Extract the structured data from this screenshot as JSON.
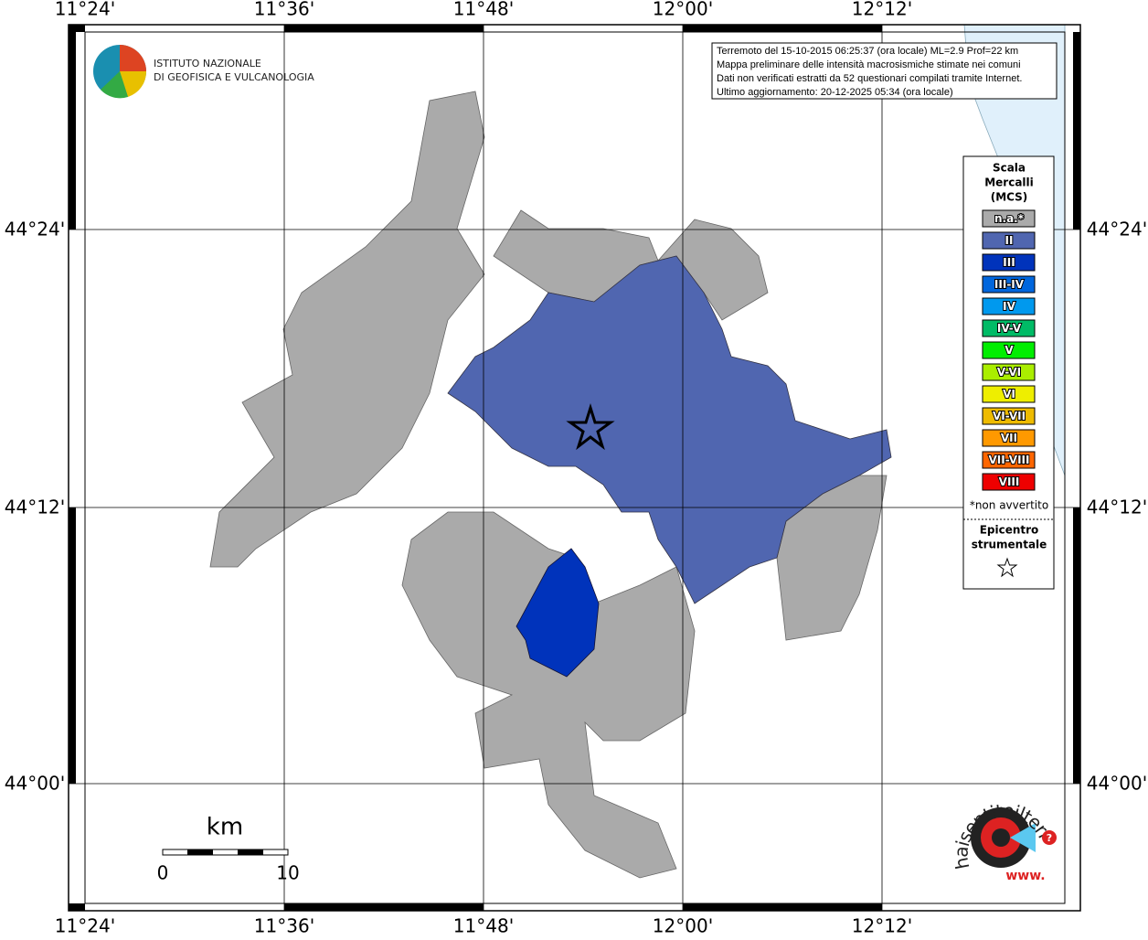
{
  "map": {
    "lon_labels": [
      "11°24'",
      "11°36'",
      "11°48'",
      "12°00'",
      "12°12'"
    ],
    "lat_labels": [
      "44°24'",
      "44°12'",
      "44°00'"
    ],
    "logo": {
      "line1": "ISTITUTO NAZIONALE",
      "line2": "DI GEOFISICA E VULCANOLOGIA"
    },
    "info": [
      "Terremoto del 15-10-2015 06:25:37 (ora locale) ML=2.9 Prof=22 km",
      "Mappa preliminare delle intensità macrosismiche stimate nei comuni",
      "Dati non verificati estratti da 52 questionari compilati tramite Internet.",
      "Ultimo aggiornamento: 20-12-2025 05:34 (ora locale)"
    ],
    "legend": {
      "title": [
        "Scala",
        "Mercalli",
        "(MCS)"
      ],
      "items": [
        {
          "label": "n.a.*",
          "color": "#aaaaaa"
        },
        {
          "label": "II",
          "color": "#5066b0"
        },
        {
          "label": "III",
          "color": "#0033bb"
        },
        {
          "label": "III-IV",
          "color": "#0066dd"
        },
        {
          "label": "IV",
          "color": "#0099ee"
        },
        {
          "label": "IV-V",
          "color": "#00bb66"
        },
        {
          "label": "V",
          "color": "#00ee00"
        },
        {
          "label": "V-VI",
          "color": "#aaee00"
        },
        {
          "label": "VI",
          "color": "#eeee00"
        },
        {
          "label": "VI-VII",
          "color": "#eebb00"
        },
        {
          "label": "VII",
          "color": "#ff9900"
        },
        {
          "label": "VII-VIII",
          "color": "#ff6600"
        },
        {
          "label": "VIII",
          "color": "#ee0000"
        }
      ],
      "note": "*non avvertito",
      "epicenter": [
        "Epicentro",
        "strumentale"
      ]
    },
    "scale": {
      "unit": "km",
      "start": "0",
      "end": "10"
    },
    "site": {
      "text": "haisentitoilterremoto.it",
      "prefix": "www.",
      "mark": "?"
    }
  }
}
